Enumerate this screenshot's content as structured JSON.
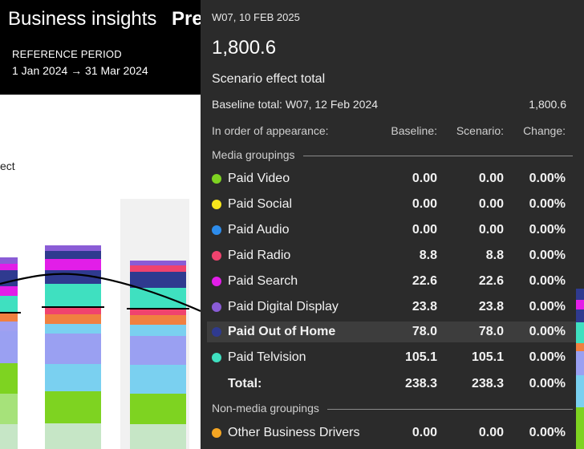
{
  "app": {
    "title": "Business insights",
    "tab_partial": "Pred",
    "reference_period_label": "REFERENCE PERIOD",
    "reference_period_value": "1 Jan 2024 → 31 Mar 2024",
    "left_label_partial": "ect"
  },
  "tooltip": {
    "date": "W07, 10 FEB 2025",
    "total": "1,800.6",
    "subtitle": "Scenario effect total",
    "baseline_label": "Baseline total: W07, 12 Feb 2024",
    "baseline_value": "1,800.6",
    "columns": {
      "order": "In order of appearance:",
      "baseline": "Baseline:",
      "scenario": "Scenario:",
      "change": "Change:"
    },
    "media_group_label": "Media groupings",
    "media_rows": [
      {
        "name": "Paid Video",
        "color": "#7ed321",
        "baseline": "0.00",
        "scenario": "0.00",
        "change": "0.00%"
      },
      {
        "name": "Paid Social",
        "color": "#f8e71c",
        "baseline": "0.00",
        "scenario": "0.00",
        "change": "0.00%"
      },
      {
        "name": "Paid Audio",
        "color": "#2d8ceb",
        "baseline": "0.00",
        "scenario": "0.00",
        "change": "0.00%"
      },
      {
        "name": "Paid Radio",
        "color": "#f0436e",
        "baseline": "8.8",
        "scenario": "8.8",
        "change": "0.00%"
      },
      {
        "name": "Paid Search",
        "color": "#e21ee8",
        "baseline": "22.6",
        "scenario": "22.6",
        "change": "0.00%"
      },
      {
        "name": "Paid Digital Display",
        "color": "#8a5cd6",
        "baseline": "23.8",
        "scenario": "23.8",
        "change": "0.00%"
      },
      {
        "name": "Paid Out of Home",
        "color": "#2f3a8f",
        "baseline": "78.0",
        "scenario": "78.0",
        "change": "0.00%"
      },
      {
        "name": "Paid Telvision",
        "color": "#3fe0c0",
        "baseline": "105.1",
        "scenario": "105.1",
        "change": "0.00%"
      }
    ],
    "total_row": {
      "name": "Total:",
      "baseline": "238.3",
      "scenario": "238.3",
      "change": "0.00%"
    },
    "non_media_group_label": "Non-media groupings",
    "non_media_rows": [
      {
        "name": "Other Business Drivers",
        "color": "#f5a623",
        "baseline": "0.00",
        "scenario": "0.00",
        "change": "0.00%"
      }
    ]
  },
  "colors": {
    "header_bg": "#000000",
    "tooltip_bg": "#2b2b2b",
    "highlight_row": "#3d3d3d"
  }
}
